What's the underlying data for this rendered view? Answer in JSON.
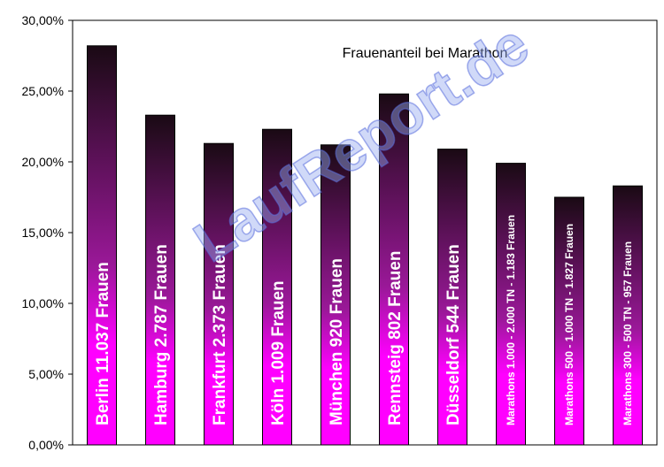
{
  "watermark": "LaufReport.de",
  "chart_data": {
    "type": "bar",
    "title": "Frauenanteil bei Marathon",
    "xlabel": "",
    "ylabel": "",
    "ylim": [
      0,
      30
    ],
    "yticks": [
      0,
      5,
      10,
      15,
      20,
      25,
      30
    ],
    "ytick_labels": [
      "0,00%",
      "5,00%",
      "10,00%",
      "15,00%",
      "20,00%",
      "25,00%",
      "30,00%"
    ],
    "grid": false,
    "legend": "none",
    "categories": [
      "Berlin  11.037  Frauen",
      "Hamburg  2.787  Frauen",
      "Frankfurt  2.373  Frauen",
      "Köln  1.009  Frauen",
      "München  920  Frauen",
      "Rennsteig  802  Frauen",
      "Düsseldorf  544  Frauen",
      "Marathons 1.000 - 2.000 TN - 1.183 Frauen",
      "Marathons 500 - 1.000 TN - 1.827 Frauen",
      "Marathons 300 - 500 TN  - 957 Frauen"
    ],
    "values": [
      28.2,
      23.3,
      21.3,
      22.3,
      21.2,
      24.8,
      20.9,
      19.9,
      17.5,
      18.3
    ],
    "colors": {
      "bar_top": "#1a0a14",
      "bar_bottom": "#ff00ff",
      "bar_stroke": "#000000",
      "axis": "#000000"
    }
  }
}
